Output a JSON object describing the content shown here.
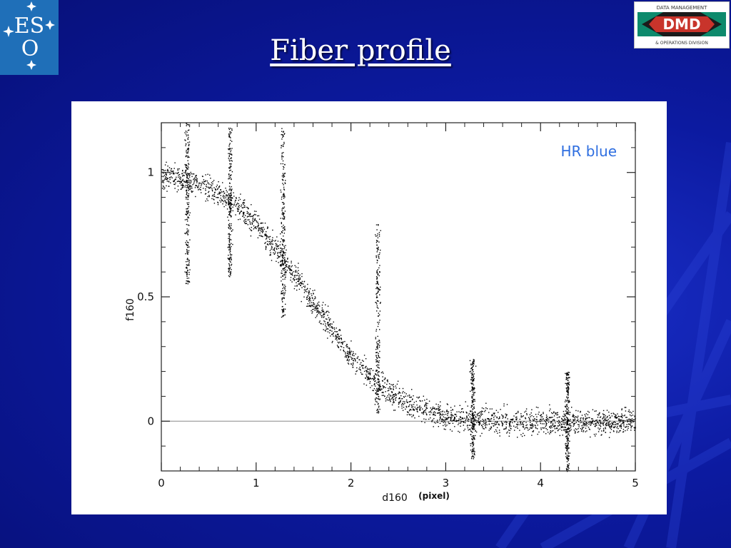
{
  "slide": {
    "title": "Fiber profile"
  },
  "logos": {
    "eso": {
      "text_top": "ES",
      "text_bottom": "O",
      "color": "#1f6fb8"
    },
    "dmd": {
      "top_text": "DATA MANAGEMENT",
      "mid_text": "DMD",
      "bottom_text": "& OPERATIONS DIVISION"
    }
  },
  "colors": {
    "background": "#0c1aa0",
    "annotation": "#2e6ee0",
    "points": "#000000"
  },
  "chart_data": {
    "type": "scatter",
    "xlabel": "d160",
    "xunit": "(pixel)",
    "ylabel": "f160",
    "annotation": "HR blue",
    "xlim": [
      0,
      5
    ],
    "ylim": [
      -0.2,
      1.2
    ],
    "xticks": [
      "0",
      "1",
      "2",
      "3",
      "4",
      "5"
    ],
    "yticks": [
      "0",
      "0.5",
      "1"
    ],
    "reference_line_y": 0,
    "profile": {
      "x": [
        0,
        0.25,
        0.5,
        0.75,
        1.0,
        1.25,
        1.5,
        1.75,
        2.0,
        2.25,
        2.5,
        2.75,
        3.0,
        3.25,
        3.5,
        4.0,
        4.5,
        5.0
      ],
      "y": [
        0.99,
        0.97,
        0.94,
        0.88,
        0.79,
        0.67,
        0.53,
        0.4,
        0.26,
        0.16,
        0.09,
        0.05,
        0.02,
        0.01,
        0.0,
        0.0,
        0.0,
        0.0
      ]
    },
    "scatter_columns": [
      {
        "x": 0.27,
        "ymin": 0.55,
        "ymax": 1.2
      },
      {
        "x": 0.72,
        "ymin": 0.58,
        "ymax": 1.18
      },
      {
        "x": 1.28,
        "ymin": 0.42,
        "ymax": 1.18
      },
      {
        "x": 2.28,
        "ymin": 0.02,
        "ymax": 0.8
      },
      {
        "x": 3.28,
        "ymin": -0.15,
        "ymax": 0.25
      },
      {
        "x": 4.28,
        "ymin": -0.2,
        "ymax": 0.2
      }
    ]
  }
}
